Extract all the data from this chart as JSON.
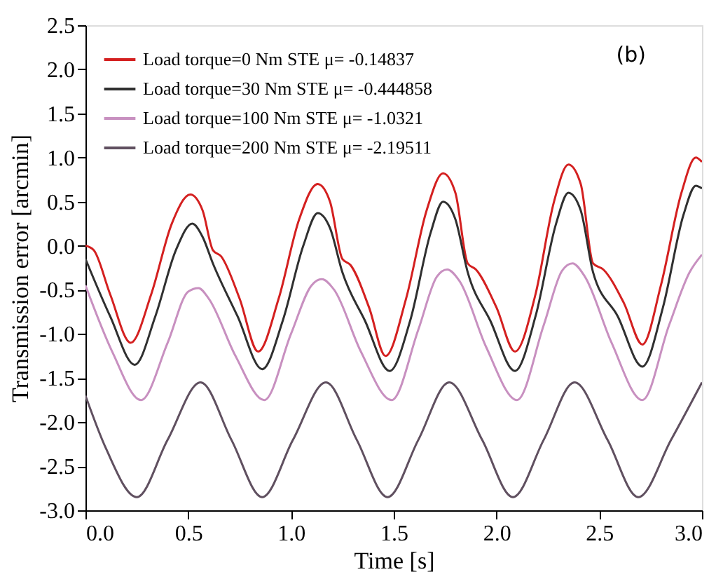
{
  "chart_data": {
    "type": "line",
    "xlabel": "Time [s]",
    "ylabel": "Transmission error [arcmin]",
    "xlim": [
      0,
      3
    ],
    "xticks": [
      {
        "value": 0,
        "label": "0.0"
      },
      0.5,
      {
        "value": 1,
        "label": "1.0"
      },
      1.5,
      {
        "value": 2,
        "label": "2.0"
      },
      2.5,
      {
        "value": 3,
        "label": "3.0"
      }
    ],
    "ylim": [
      -3,
      2.5
    ],
    "yticks": [
      {
        "value": -3,
        "label": "-3.0"
      },
      {
        "value": -2.5,
        "label": "-2.5"
      },
      {
        "value": -2,
        "label": "-2.0"
      },
      {
        "value": -1.5,
        "label": "-1.5"
      },
      {
        "value": -1,
        "label": "-1.0"
      },
      {
        "value": -0.5,
        "label": "-0.5"
      },
      {
        "value": 0,
        "label": "0.0"
      },
      0.5,
      {
        "value": 1,
        "label": "1.0"
      },
      1.5,
      {
        "value": 2,
        "label": "2.0"
      },
      2.5
    ],
    "grid": false,
    "legend": "top left",
    "marker": "none",
    "line_style": "solid",
    "annotations": [
      "(b)"
    ],
    "series": [
      {
        "name": "Load torque=0 Nm STE  μ= -0.14837",
        "color": "#d42020",
        "x": [
          0,
          0.04,
          0.12,
          0.22,
          0.32,
          0.42,
          0.51,
          0.57,
          0.62,
          0.66,
          0.75,
          0.84,
          0.94,
          1.04,
          1.13,
          1.19,
          1.25,
          1.29,
          1.38,
          1.46,
          1.56,
          1.66,
          1.74,
          1.8,
          1.86,
          1.9,
          2.0,
          2.09,
          2.19,
          2.28,
          2.35,
          2.41,
          2.47,
          2.52,
          2.62,
          2.71,
          2.8,
          2.9,
          2.97,
          3.0
        ],
        "values": [
          0.0,
          -0.05,
          -0.55,
          -1.1,
          -0.55,
          0.25,
          0.58,
          0.4,
          -0.05,
          -0.12,
          -0.6,
          -1.2,
          -0.6,
          0.3,
          0.7,
          0.5,
          -0.15,
          -0.22,
          -0.7,
          -1.25,
          -0.6,
          0.4,
          0.82,
          0.6,
          -0.2,
          -0.27,
          -0.7,
          -1.2,
          -0.55,
          0.5,
          0.92,
          0.7,
          -0.2,
          -0.27,
          -0.65,
          -1.12,
          -0.45,
          0.6,
          1.0,
          0.95
        ]
      },
      {
        "name": "Load torque=30 Nm STE  μ= -0.444858",
        "color": "#303030",
        "x": [
          0,
          0.12,
          0.24,
          0.34,
          0.44,
          0.52,
          0.57,
          0.62,
          0.74,
          0.86,
          0.96,
          1.06,
          1.13,
          1.19,
          1.25,
          1.36,
          1.48,
          1.58,
          1.68,
          1.74,
          1.8,
          1.86,
          1.97,
          2.09,
          2.19,
          2.29,
          2.35,
          2.41,
          2.47,
          2.59,
          2.71,
          2.81,
          2.91,
          2.97,
          3.0
        ],
        "values": [
          -0.15,
          -0.8,
          -1.35,
          -0.8,
          -0.05,
          0.25,
          0.1,
          -0.2,
          -0.8,
          -1.4,
          -0.85,
          0.0,
          0.37,
          0.2,
          -0.3,
          -0.85,
          -1.42,
          -0.85,
          0.15,
          0.5,
          0.3,
          -0.3,
          -0.85,
          -1.42,
          -0.8,
          0.25,
          0.6,
          0.4,
          -0.3,
          -0.8,
          -1.37,
          -0.7,
          0.35,
          0.68,
          0.65
        ]
      },
      {
        "name": "Load torque=100 Nm STE  μ= -1.0321",
        "color": "#c890c0",
        "x": [
          0,
          0.13,
          0.27,
          0.4,
          0.5,
          0.55,
          0.6,
          0.73,
          0.87,
          1.0,
          1.1,
          1.15,
          1.21,
          1.34,
          1.49,
          1.62,
          1.71,
          1.76,
          1.82,
          1.95,
          2.1,
          2.23,
          2.32,
          2.37,
          2.43,
          2.56,
          2.71,
          2.84,
          2.94,
          3.0
        ],
        "values": [
          -0.45,
          -1.2,
          -1.75,
          -1.1,
          -0.52,
          -0.48,
          -0.6,
          -1.25,
          -1.75,
          -1.0,
          -0.45,
          -0.38,
          -0.5,
          -1.2,
          -1.75,
          -0.95,
          -0.35,
          -0.27,
          -0.4,
          -1.15,
          -1.75,
          -0.9,
          -0.28,
          -0.2,
          -0.35,
          -1.1,
          -1.75,
          -0.9,
          -0.3,
          -0.1
        ]
      },
      {
        "name": "Load torque=200 Nm STE  μ= -2.19511",
        "color": "#605060",
        "x": [
          0,
          0.1,
          0.25,
          0.4,
          0.56,
          0.71,
          0.86,
          1.01,
          1.17,
          1.32,
          1.47,
          1.62,
          1.77,
          1.93,
          2.08,
          2.23,
          2.38,
          2.54,
          2.69,
          2.85,
          3.0
        ],
        "values": [
          -1.7,
          -2.3,
          -2.85,
          -2.2,
          -1.55,
          -2.2,
          -2.85,
          -2.2,
          -1.55,
          -2.2,
          -2.85,
          -2.2,
          -1.55,
          -2.2,
          -2.85,
          -2.2,
          -1.55,
          -2.2,
          -2.85,
          -2.2,
          -1.55
        ]
      }
    ]
  }
}
